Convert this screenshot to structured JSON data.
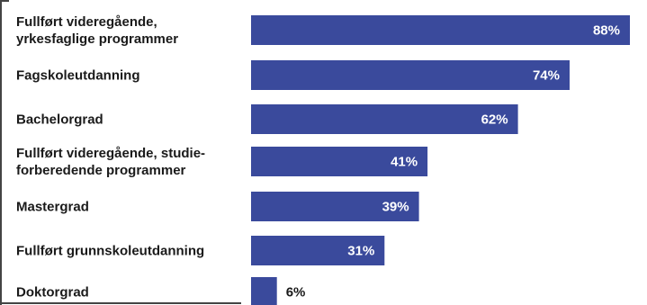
{
  "chart_data": {
    "type": "bar",
    "orientation": "horizontal",
    "categories": [
      "Fullført videregående, yrkesfaglige programmer",
      "Fagskoleutdanning",
      "Bachelorgrad",
      "Fullført videregående, studieforberedende programmer",
      "Mastergrad",
      "Fullført grunnskoleutdanning",
      "Doktorgrad"
    ],
    "category_lines": [
      [
        "Fullført videregående,",
        "yrkesfaglige programmer"
      ],
      [
        "Fagskoleutdanning"
      ],
      [
        "Bachelorgrad"
      ],
      [
        "Fullført videregående, studie-",
        "forberedende programmer"
      ],
      [
        "Mastergrad"
      ],
      [
        "Fullført grunnskoleutdanning"
      ],
      [
        "Doktorgrad"
      ]
    ],
    "values": [
      88,
      74,
      62,
      41,
      39,
      31,
      6
    ],
    "value_labels": [
      "88%",
      "74%",
      "62%",
      "41%",
      "39%",
      "31%",
      "6%"
    ],
    "title": "",
    "xlabel": "",
    "ylabel": "",
    "xlim": [
      0,
      88
    ],
    "grid": false,
    "legend": "none",
    "colors": {
      "bar": "#3a4a9c",
      "label_inside": "#ffffff",
      "label_outside": "#1a1a1a"
    }
  }
}
